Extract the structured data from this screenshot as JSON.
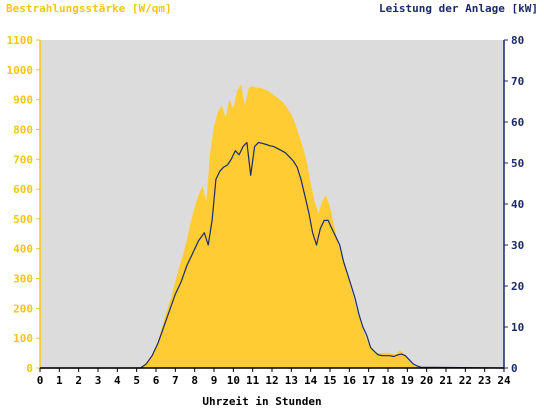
{
  "chart_data": {
    "type": "area",
    "ylabel_left": "Bestrahlungsstärke [W/qm]",
    "ylabel_right": "Leistung der Anlage [kW]",
    "xlabel": "Uhrzeit in Stunden",
    "x_ticks": [
      "0",
      "1",
      "2",
      "3",
      "4",
      "5",
      "6",
      "7",
      "8",
      "9",
      "10",
      "11",
      "12",
      "13",
      "14",
      "15",
      "16",
      "17",
      "18",
      "19",
      "20",
      "21",
      "22",
      "23",
      "24"
    ],
    "y_left_ticks": [
      "0",
      "100",
      "200",
      "300",
      "400",
      "500",
      "600",
      "700",
      "800",
      "900",
      "1000",
      "1100"
    ],
    "y_right_ticks": [
      "0",
      "10",
      "20",
      "30",
      "40",
      "50",
      "60",
      "70",
      "80"
    ],
    "xlim": [
      0,
      24
    ],
    "ylim_left": [
      0,
      1100
    ],
    "ylim_right": [
      0,
      80
    ],
    "grid": false,
    "colors": {
      "irradiance_fill": "#ffcc33",
      "power_line": "#1b2a6b",
      "plot_background": "#dcdcdc",
      "left_axis": "#f5c518",
      "right_axis": "#1b2a6b"
    },
    "series": [
      {
        "name": "Bestrahlungsstärke [W/qm]",
        "axis": "left",
        "x": [
          0,
          5.0,
          5.3,
          5.6,
          5.9,
          6.2,
          6.5,
          6.8,
          7.0,
          7.2,
          7.4,
          7.6,
          7.8,
          8.0,
          8.2,
          8.4,
          8.6,
          8.8,
          9.0,
          9.2,
          9.4,
          9.6,
          9.8,
          10.0,
          10.2,
          10.4,
          10.6,
          10.8,
          11.0,
          11.2,
          11.4,
          11.6,
          11.8,
          12.0,
          12.2,
          12.4,
          12.6,
          12.8,
          13.0,
          13.2,
          13.4,
          13.6,
          13.8,
          14.0,
          14.2,
          14.4,
          14.6,
          14.8,
          15.0,
          15.2,
          15.4,
          15.6,
          15.8,
          16.0,
          16.2,
          16.4,
          16.6,
          16.8,
          17.0,
          17.2,
          17.4,
          17.6,
          17.8,
          18.0,
          18.2,
          18.4,
          18.6,
          18.8,
          19.0,
          19.2,
          19.4,
          19.6,
          19.8,
          20.0,
          24
        ],
        "values": [
          0,
          0,
          5,
          25,
          55,
          110,
          180,
          240,
          290,
          340,
          380,
          430,
          490,
          540,
          580,
          610,
          560,
          720,
          810,
          860,
          880,
          840,
          900,
          870,
          930,
          950,
          880,
          940,
          945,
          940,
          940,
          935,
          930,
          920,
          910,
          900,
          890,
          870,
          850,
          820,
          780,
          740,
          690,
          620,
          560,
          520,
          560,
          580,
          540,
          480,
          420,
          380,
          340,
          290,
          240,
          190,
          150,
          110,
          80,
          60,
          50,
          50,
          50,
          50,
          48,
          45,
          60,
          50,
          30,
          15,
          8,
          3,
          0,
          0,
          0
        ]
      },
      {
        "name": "Leistung der Anlage [kW]",
        "axis": "right",
        "x": [
          0,
          5.2,
          5.5,
          5.8,
          6.1,
          6.4,
          6.7,
          7.0,
          7.3,
          7.6,
          7.9,
          8.2,
          8.5,
          8.7,
          8.9,
          9.1,
          9.3,
          9.5,
          9.7,
          9.9,
          10.1,
          10.3,
          10.5,
          10.7,
          10.9,
          11.1,
          11.3,
          11.5,
          11.7,
          11.9,
          12.1,
          12.3,
          12.5,
          12.7,
          12.9,
          13.1,
          13.3,
          13.5,
          13.7,
          13.9,
          14.1,
          14.3,
          14.5,
          14.7,
          14.9,
          15.1,
          15.3,
          15.5,
          15.7,
          15.9,
          16.1,
          16.3,
          16.5,
          16.7,
          16.9,
          17.1,
          17.3,
          17.5,
          17.7,
          17.9,
          18.1,
          18.3,
          18.5,
          18.7,
          18.9,
          19.1,
          19.3,
          19.5,
          19.7,
          24
        ],
        "values": [
          0,
          0,
          1,
          3,
          6,
          10,
          14,
          18,
          21,
          25,
          28,
          31,
          33,
          30,
          36,
          46,
          48,
          49,
          49.5,
          51,
          53,
          52,
          54,
          55,
          47,
          54,
          55,
          54.8,
          54.5,
          54.2,
          54,
          53.5,
          53,
          52.5,
          51.5,
          50.5,
          49,
          46,
          42,
          38,
          33,
          30,
          34,
          36,
          36,
          34,
          32,
          30,
          26,
          23,
          20,
          17,
          13,
          10,
          8,
          5,
          4,
          3.2,
          3,
          3,
          3,
          2.8,
          3.2,
          3.4,
          3,
          2,
          1,
          0.5,
          0.2,
          0
        ]
      }
    ]
  }
}
